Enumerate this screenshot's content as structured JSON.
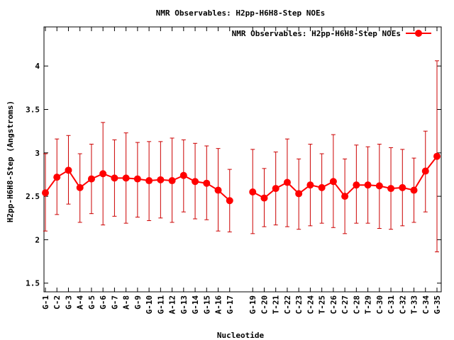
{
  "chart_data": {
    "type": "line",
    "title": "NMR Observables: H2pp-H6H8-Step NOEs",
    "xlabel": "Nucleotide",
    "ylabel": "H2pp-H6H8-Step (Angstroms)",
    "ylim": [
      1.4,
      4.45
    ],
    "yticks": [
      1.5,
      2,
      2.5,
      3,
      3.5,
      4
    ],
    "ytick_labels": [
      "1.5",
      "2",
      "2.5",
      "3",
      "3.5",
      "4"
    ],
    "legend": {
      "label": "NMR Observables: H2pp-H6H8-Step NOEs",
      "position": "top-right"
    },
    "grid": false,
    "series_color": "#ff0000",
    "errorbar_color": "#cc0000",
    "categories": [
      "G-1",
      "C-2",
      "G-3",
      "A-4",
      "G-5",
      "G-6",
      "G-7",
      "A-8",
      "G-9",
      "G-10",
      "G-11",
      "A-12",
      "G-13",
      "G-14",
      "G-15",
      "A-16",
      "G-17",
      "G-19",
      "C-20",
      "T-21",
      "C-22",
      "C-23",
      "C-24",
      "T-25",
      "C-26",
      "C-27",
      "C-28",
      "T-29",
      "C-30",
      "C-31",
      "C-32",
      "T-33",
      "C-34",
      "G-35"
    ],
    "segments": [
      [
        0,
        16
      ],
      [
        17,
        33
      ]
    ],
    "values": [
      2.54,
      2.72,
      2.8,
      2.6,
      2.7,
      2.76,
      2.71,
      2.71,
      2.7,
      2.68,
      2.69,
      2.68,
      2.74,
      2.67,
      2.65,
      2.57,
      2.45,
      2.55,
      2.48,
      2.59,
      2.66,
      2.53,
      2.63,
      2.6,
      2.67,
      2.5,
      2.63,
      2.63,
      2.62,
      2.59,
      2.6,
      2.57,
      2.79,
      2.96
    ],
    "err_low": [
      2.1,
      2.29,
      2.41,
      2.2,
      2.3,
      2.17,
      2.27,
      2.19,
      2.26,
      2.22,
      2.25,
      2.2,
      2.32,
      2.24,
      2.23,
      2.1,
      2.09,
      2.07,
      2.15,
      2.17,
      2.15,
      2.12,
      2.16,
      2.19,
      2.14,
      2.07,
      2.19,
      2.19,
      2.13,
      2.12,
      2.16,
      2.2,
      2.32,
      1.86
    ],
    "err_high": [
      2.99,
      3.16,
      3.2,
      2.99,
      3.1,
      3.35,
      3.15,
      3.23,
      3.12,
      3.13,
      3.13,
      3.17,
      3.15,
      3.11,
      3.08,
      3.05,
      2.81,
      3.04,
      2.82,
      3.01,
      3.16,
      2.93,
      3.1,
      2.99,
      3.21,
      2.93,
      3.09,
      3.07,
      3.1,
      3.06,
      3.04,
      2.94,
      3.25,
      4.06
    ]
  }
}
